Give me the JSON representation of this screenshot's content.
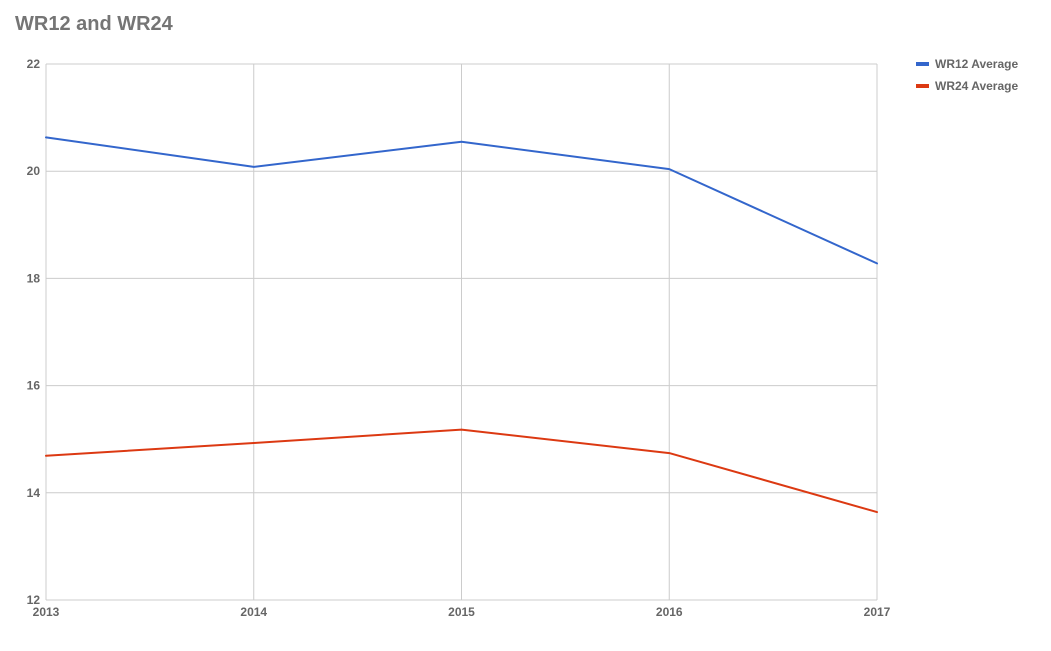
{
  "chart_data": {
    "type": "line",
    "title": "WR12 and WR24",
    "xlabel": "",
    "ylabel": "",
    "categories": [
      "2013",
      "2014",
      "2015",
      "2016",
      "2017"
    ],
    "ylim": [
      12,
      22
    ],
    "yticks": [
      12,
      14,
      16,
      18,
      20,
      22
    ],
    "grid": true,
    "legend_position": "top-right",
    "series": [
      {
        "name": "WR12 Average",
        "color": "#3366cc",
        "values": [
          20.63,
          20.08,
          20.55,
          20.04,
          18.28
        ]
      },
      {
        "name": "WR24 Average",
        "color": "#dc3912",
        "values": [
          14.69,
          14.93,
          15.18,
          14.74,
          13.64
        ]
      }
    ]
  }
}
